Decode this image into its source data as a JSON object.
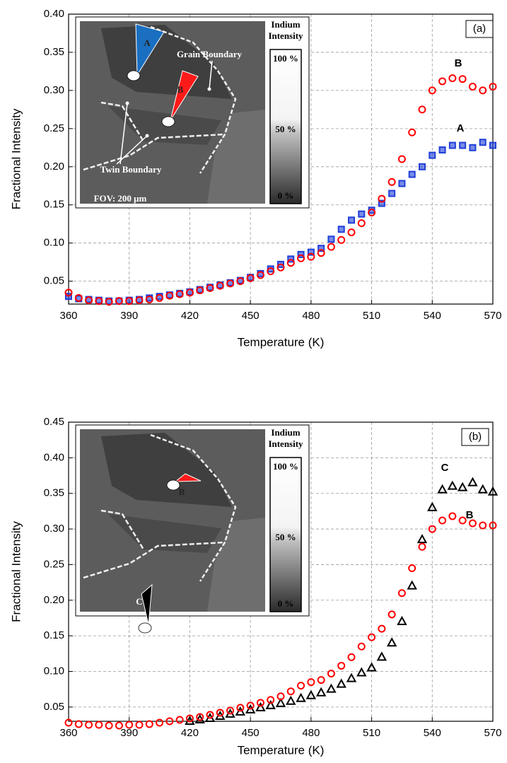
{
  "chart_data": [
    {
      "type": "scatter",
      "panel_label": "(a)",
      "x_label": "Temperature (K)",
      "y_label": "Fractional Intensity",
      "xlim": [
        360,
        570
      ],
      "xticks": [
        360,
        390,
        420,
        450,
        480,
        510,
        540,
        570
      ],
      "ylim": [
        0.02,
        0.4
      ],
      "yticks": [
        0.05,
        {
          "value": 0.1,
          "label": "0.10"
        },
        0.15,
        {
          "value": 0.2,
          "label": "0.20"
        },
        0.25,
        {
          "value": 0.3,
          "label": "0.30"
        },
        0.35,
        {
          "value": 0.4,
          "label": "0.40"
        }
      ],
      "grid": true,
      "x": [
        360,
        365,
        370,
        375,
        380,
        385,
        390,
        395,
        400,
        405,
        410,
        415,
        420,
        425,
        430,
        435,
        440,
        445,
        450,
        455,
        460,
        465,
        470,
        475,
        480,
        485,
        490,
        495,
        500,
        505,
        510,
        515,
        520,
        525,
        530,
        535,
        540,
        545,
        550,
        555,
        560,
        565,
        570
      ],
      "series": [
        {
          "name": "A",
          "color": "#1f3fd8",
          "marker": "square",
          "values": [
            0.03,
            0.027,
            0.026,
            0.025,
            0.024,
            0.024,
            0.025,
            0.026,
            0.028,
            0.03,
            0.032,
            0.034,
            0.036,
            0.039,
            0.042,
            0.045,
            0.048,
            0.051,
            0.055,
            0.06,
            0.066,
            0.072,
            0.079,
            0.085,
            0.088,
            0.093,
            0.105,
            0.118,
            0.13,
            0.138,
            0.143,
            0.152,
            0.165,
            0.178,
            0.19,
            0.2,
            0.215,
            0.222,
            0.228,
            0.228,
            0.225,
            0.232,
            0.228
          ]
        },
        {
          "name": "B",
          "color": "#ff0000",
          "marker": "circle",
          "values": [
            0.035,
            0.028,
            0.025,
            0.024,
            0.023,
            0.024,
            0.024,
            0.025,
            0.026,
            0.028,
            0.031,
            0.033,
            0.035,
            0.038,
            0.041,
            0.044,
            0.047,
            0.05,
            0.054,
            0.058,
            0.063,
            0.068,
            0.074,
            0.08,
            0.082,
            0.087,
            0.095,
            0.104,
            0.114,
            0.126,
            0.14,
            0.158,
            0.18,
            0.21,
            0.245,
            0.275,
            0.3,
            0.312,
            0.316,
            0.315,
            0.305,
            0.3,
            0.305
          ]
        }
      ],
      "annotations": [
        "B",
        "A"
      ],
      "inset": {
        "labels": [
          "A",
          "B",
          "Grain Boundary",
          "Twin Boundary",
          "FOV: 200 μm"
        ],
        "colorbar_labels": [
          "Indium",
          "Intensity",
          "100 %",
          "50 %",
          "0 %"
        ]
      }
    },
    {
      "type": "scatter",
      "panel_label": "(b)",
      "x_label": "Temperature (K)",
      "y_label": "Fractional Intensity",
      "xlim": [
        360,
        570
      ],
      "xticks": [
        360,
        390,
        420,
        450,
        480,
        510,
        540,
        570
      ],
      "ylim": [
        0.03,
        0.45
      ],
      "yticks": [
        0.05,
        {
          "value": 0.1,
          "label": "0.10"
        },
        0.15,
        {
          "value": 0.2,
          "label": "0.20"
        },
        0.25,
        {
          "value": 0.3,
          "label": "0.30"
        },
        0.35,
        {
          "value": 0.4,
          "label": "0.40"
        },
        0.45
      ],
      "grid": true,
      "x": [
        360,
        365,
        370,
        375,
        380,
        385,
        390,
        395,
        400,
        405,
        410,
        415,
        420,
        425,
        430,
        435,
        440,
        445,
        450,
        455,
        460,
        465,
        470,
        475,
        480,
        485,
        490,
        495,
        500,
        505,
        510,
        515,
        520,
        525,
        530,
        535,
        540,
        545,
        550,
        555,
        560,
        565,
        570
      ],
      "series": [
        {
          "name": "C",
          "color": "#000000",
          "marker": "triangle",
          "values": [
            null,
            null,
            null,
            null,
            null,
            null,
            null,
            null,
            null,
            null,
            null,
            null,
            0.03,
            0.032,
            0.034,
            0.037,
            0.04,
            0.043,
            0.046,
            0.049,
            0.052,
            0.055,
            0.058,
            0.062,
            0.066,
            0.07,
            0.075,
            0.082,
            0.09,
            0.098,
            0.105,
            0.12,
            0.14,
            0.17,
            0.22,
            0.285,
            0.33,
            0.355,
            0.36,
            0.358,
            0.365,
            0.355,
            0.352
          ]
        },
        {
          "name": "B",
          "color": "#ff0000",
          "marker": "circle",
          "values": [
            0.028,
            0.026,
            0.025,
            0.025,
            0.024,
            0.024,
            0.025,
            0.025,
            0.026,
            0.028,
            0.03,
            0.032,
            0.034,
            0.036,
            0.039,
            0.042,
            0.045,
            0.049,
            0.052,
            0.056,
            0.06,
            0.065,
            0.072,
            0.08,
            0.085,
            0.088,
            0.097,
            0.108,
            0.12,
            0.135,
            0.148,
            0.16,
            0.18,
            0.21,
            0.245,
            0.275,
            0.3,
            0.312,
            0.318,
            0.312,
            0.308,
            0.305,
            0.305
          ]
        }
      ],
      "annotations": [
        "C",
        "B"
      ],
      "inset": {
        "labels": [
          "B",
          "C"
        ],
        "colorbar_labels": [
          "Indium",
          "Intensity",
          "100 %",
          "50 %",
          "0 %"
        ]
      }
    }
  ]
}
